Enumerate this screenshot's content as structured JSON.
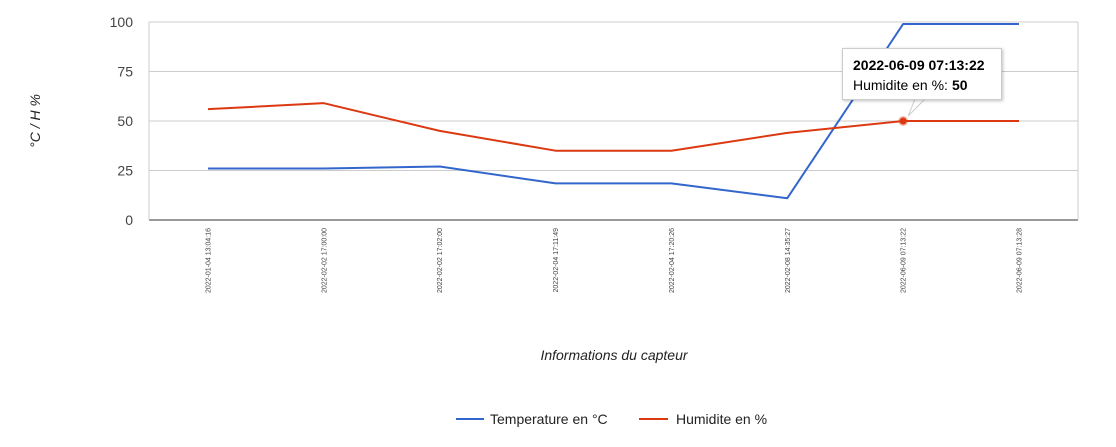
{
  "chart_data": {
    "type": "line",
    "categories": [
      "2022-01-04 13:04:16",
      "2022-02-02 17:00:00",
      "2022-02-02 17:02:00",
      "2022-02-04 17:11:49",
      "2022-02-04 17:20:26",
      "2022-02-08 14:35:27",
      "2022-06-09 07:13:22",
      "2022-06-09 07:13:28"
    ],
    "series": [
      {
        "name": "Temperature en °C",
        "color": "#3366cc",
        "values": [
          26,
          26,
          27,
          18.5,
          18.5,
          11,
          99,
          99
        ]
      },
      {
        "name": "Humidite en %",
        "color": "#dc3912",
        "values": [
          56,
          59,
          45,
          35,
          35,
          44,
          50,
          50
        ]
      }
    ],
    "xlabel": "Informations du capteur",
    "ylabel": "°C / H %",
    "ylim": [
      0,
      100
    ],
    "yticks": [
      0,
      25,
      50,
      75,
      100
    ],
    "grid": true,
    "legend_position": "bottom",
    "tooltip": {
      "title": "2022-06-09 07:13:22",
      "label": "Humidite en %:",
      "value": "50",
      "series_index": 1,
      "point_index": 6
    }
  }
}
